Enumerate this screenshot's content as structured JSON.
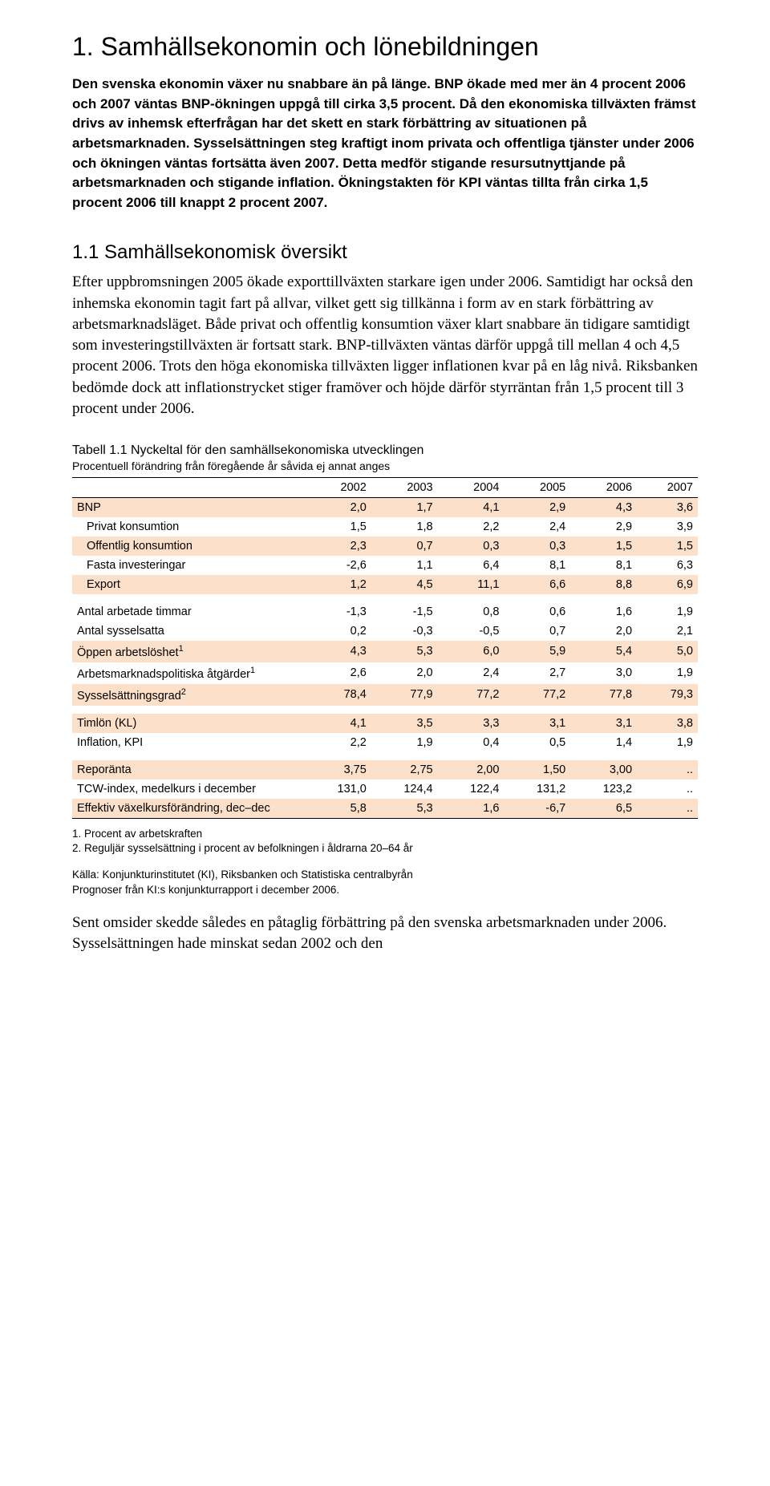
{
  "heading1": "1.  Samhällsekonomin och lönebildningen",
  "lead": "Den svenska ekonomin växer nu snabbare än på länge. BNP ökade med mer än 4 procent 2006 och 2007 väntas BNP-ökningen uppgå till cirka 3,5 procent. Då den ekonomiska tillväxten främst drivs av inhemsk efterfrågan har det skett en stark förbättring av situationen på arbetsmarknaden. Sysselsättningen steg kraftigt inom privata och offentliga tjänster under 2006 och ökningen väntas fortsätta även 2007. Detta medför stigande resursutnyttjande på arbetsmarknaden och stigande inflation. Ökningstakten för KPI väntas tillta från cirka 1,5 procent 2006 till knappt 2 procent 2007.",
  "heading2": "1.1 Samhällsekonomisk översikt",
  "body": "Efter uppbromsningen 2005 ökade exporttillväxten starkare igen under 2006. Samtidigt har också den inhemska ekonomin tagit fart på allvar, vilket gett sig tillkänna i form av en stark förbättring av arbetsmarknadsläget. Både privat och offentlig konsumtion växer klart snabbare än tidigare samtidigt som investeringstillväxten är fortsatt stark. BNP-tillväxten väntas därför uppgå till mellan 4 och 4,5 procent 2006. Trots den höga ekonomiska tillväxten ligger inflationen kvar på en låg nivå. Riksbanken bedömde dock att inflationstrycket stiger framöver och höjde därför styrräntan från 1,5 procent till 3 procent under 2006.",
  "table": {
    "title": "Tabell 1.1  Nyckeltal för den samhällsekonomiska utvecklingen",
    "subtitle": "Procentuell förändring från föregående år såvida ej annat anges",
    "columns": [
      "",
      "2002",
      "2003",
      "2004",
      "2005",
      "2006",
      "2007"
    ],
    "stripe_color": "#fde0c9",
    "groups": [
      {
        "rows": [
          {
            "label": "BNP",
            "values": [
              "2,0",
              "1,7",
              "4,1",
              "2,9",
              "4,3",
              "3,6"
            ],
            "striped": true
          },
          {
            "label": "Privat  konsumtion",
            "values": [
              "1,5",
              "1,8",
              "2,2",
              "2,4",
              "2,9",
              "3,9"
            ],
            "indent": true
          },
          {
            "label": "Offentlig konsumtion",
            "values": [
              "2,3",
              "0,7",
              "0,3",
              "0,3",
              "1,5",
              "1,5"
            ],
            "indent": true,
            "striped": true
          },
          {
            "label": "Fasta investeringar",
            "values": [
              "-2,6",
              "1,1",
              "6,4",
              "8,1",
              "8,1",
              "6,3"
            ],
            "indent": true
          },
          {
            "label": "Export",
            "values": [
              "1,2",
              "4,5",
              "11,1",
              "6,6",
              "8,8",
              "6,9"
            ],
            "indent": true,
            "striped": true
          }
        ]
      },
      {
        "rows": [
          {
            "label": "Antal arbetade timmar",
            "values": [
              "-1,3",
              "-1,5",
              "0,8",
              "0,6",
              "1,6",
              "1,9"
            ]
          },
          {
            "label": "Antal sysselsatta",
            "values": [
              "0,2",
              "-0,3",
              "-0,5",
              "0,7",
              "2,0",
              "2,1"
            ]
          },
          {
            "label": "Öppen arbetslöshet",
            "sup": "1",
            "values": [
              "4,3",
              "5,3",
              "6,0",
              "5,9",
              "5,4",
              "5,0"
            ],
            "striped": true
          },
          {
            "label": "Arbetsmarknadspolitiska åtgärder",
            "sup": "1",
            "values": [
              "2,6",
              "2,0",
              "2,4",
              "2,7",
              "3,0",
              "1,9"
            ]
          },
          {
            "label": "Sysselsättningsgrad",
            "sup": "2",
            "values": [
              "78,4",
              "77,9",
              "77,2",
              "77,2",
              "77,8",
              "79,3"
            ],
            "striped": true
          }
        ]
      },
      {
        "rows": [
          {
            "label": "Timlön (KL)",
            "values": [
              "4,1",
              "3,5",
              "3,3",
              "3,1",
              "3,1",
              "3,8"
            ],
            "striped": true
          },
          {
            "label": "Inflation, KPI",
            "values": [
              "2,2",
              "1,9",
              "0,4",
              "0,5",
              "1,4",
              "1,9"
            ]
          }
        ]
      },
      {
        "rows": [
          {
            "label": "Reporänta",
            "values": [
              "3,75",
              "2,75",
              "2,00",
              "1,50",
              "3,00",
              ".."
            ],
            "striped": true
          },
          {
            "label": "TCW-index, medelkurs i december",
            "values": [
              "131,0",
              "124,4",
              "122,4",
              "131,2",
              "123,2",
              ".."
            ]
          },
          {
            "label": "Effektiv växelkursförändring, dec–dec",
            "values": [
              "5,8",
              "5,3",
              "1,6",
              "-6,7",
              "6,5",
              ".."
            ],
            "striped": true
          }
        ]
      }
    ]
  },
  "footnotes": {
    "f1": "1. Procent av arbetskraften",
    "f2": "2. Reguljär sysselsättning i procent av befolkningen i åldrarna 20–64 år"
  },
  "source": {
    "line1": "Källa: Konjunkturinstitutet (KI), Riksbanken och Statistiska centralbyrån",
    "line2": "Prognoser från KI:s konjunkturrapport i december 2006."
  },
  "closing": "Sent omsider skedde således en påtaglig förbättring på den svenska arbets­marknaden under 2006. Sysselsättningen hade minskat sedan 2002 och den"
}
